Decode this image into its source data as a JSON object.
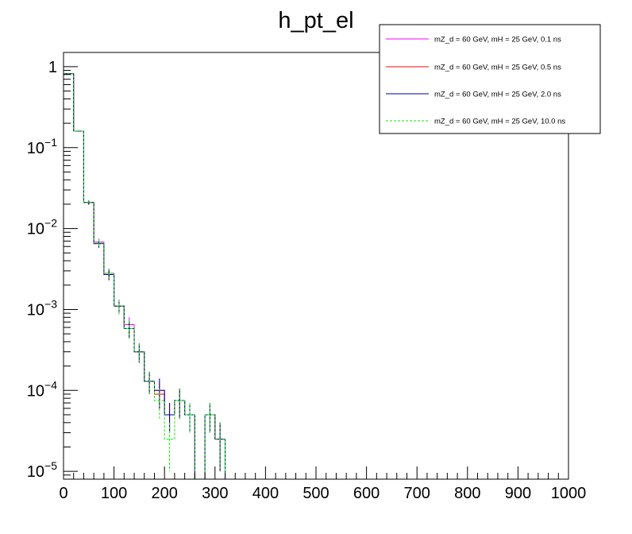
{
  "chart_data": {
    "type": "histogram",
    "title": "h_pt_el",
    "xlabel": "",
    "ylabel": "",
    "xlim": [
      0,
      1000
    ],
    "ylim": [
      8e-06,
      1.5
    ],
    "yscale": "log",
    "grid": false,
    "legend_position": "top-right",
    "bin_width": 20,
    "bin_start": 0,
    "x_ticks": [
      "0",
      "100",
      "200",
      "300",
      "400",
      "500",
      "600",
      "700",
      "800",
      "900",
      "1000"
    ],
    "y_ticks": [
      {
        "value": 1,
        "base": "1",
        "exp": ""
      },
      {
        "value": 0.1,
        "base": "10",
        "exp": "−1"
      },
      {
        "value": 0.01,
        "base": "10",
        "exp": "−2"
      },
      {
        "value": 0.001,
        "base": "10",
        "exp": "−3"
      },
      {
        "value": 0.0001,
        "base": "10",
        "exp": "−4"
      },
      {
        "value": 1e-05,
        "base": "10",
        "exp": "−5"
      }
    ],
    "series": [
      {
        "name": "mZ_d = 60 GeV, mH = 25 GeV, 0.1 ns",
        "color": "#ff00ff",
        "dashed": false,
        "values": [
          0.82,
          0.16,
          0.021,
          0.0068,
          0.0028,
          0.0011,
          0.00065,
          0.0003,
          0.00013,
          0.0001,
          5e-05,
          7.5e-05,
          5e-05,
          0,
          5e-05,
          2.5e-05
        ],
        "errors": [
          0.01,
          0.004,
          0.0013,
          0.0007,
          0.0004,
          0.00022,
          0.00015,
          8e-05,
          4e-05,
          4e-05,
          2e-05,
          3e-05,
          2e-05,
          0,
          2e-05,
          1.5e-05
        ]
      },
      {
        "name": "mZ_d = 60 GeV, mH = 25 GeV, 0.5 ns",
        "color": "#ff0000",
        "dashed": false,
        "values": [
          0.82,
          0.16,
          0.021,
          0.0065,
          0.0027,
          0.0011,
          0.00058,
          0.0003,
          0.00013,
          9e-05,
          5e-05,
          7.5e-05,
          5e-05,
          0,
          5e-05,
          2.5e-05
        ],
        "errors": [
          0.01,
          0.004,
          0.0013,
          0.0007,
          0.0004,
          0.00022,
          0.00014,
          8e-05,
          4e-05,
          3e-05,
          2e-05,
          3e-05,
          2e-05,
          0,
          2e-05,
          1.5e-05
        ]
      },
      {
        "name": "mZ_d = 60 GeV, mH = 25 GeV, 2.0 ns",
        "color": "#000099",
        "dashed": false,
        "values": [
          0.82,
          0.16,
          0.021,
          0.0065,
          0.0027,
          0.0011,
          0.00058,
          0.0003,
          0.00013,
          0.0001,
          5e-05,
          7.5e-05,
          5e-05,
          0,
          5e-05,
          2.5e-05
        ],
        "errors": [
          0.01,
          0.004,
          0.0013,
          0.0007,
          0.0004,
          0.00022,
          0.00014,
          8e-05,
          4e-05,
          4e-05,
          2e-05,
          3e-05,
          2e-05,
          0,
          2e-05,
          1.5e-05
        ]
      },
      {
        "name": "mZ_d = 60 GeV, mH = 25 GeV, 10.0 ns",
        "color": "#00ee00",
        "dashed": true,
        "values": [
          0.82,
          0.16,
          0.021,
          0.0066,
          0.0028,
          0.0011,
          0.00058,
          0.0003,
          0.00013,
          7.5e-05,
          2.5e-05,
          7.5e-05,
          5e-05,
          0,
          5e-05,
          2.5e-05
        ],
        "errors": [
          0.01,
          0.004,
          0.0013,
          0.0007,
          0.0004,
          0.00022,
          0.00014,
          8e-05,
          4e-05,
          3e-05,
          1.5e-05,
          3e-05,
          2e-05,
          0,
          2e-05,
          1.5e-05
        ]
      }
    ]
  }
}
